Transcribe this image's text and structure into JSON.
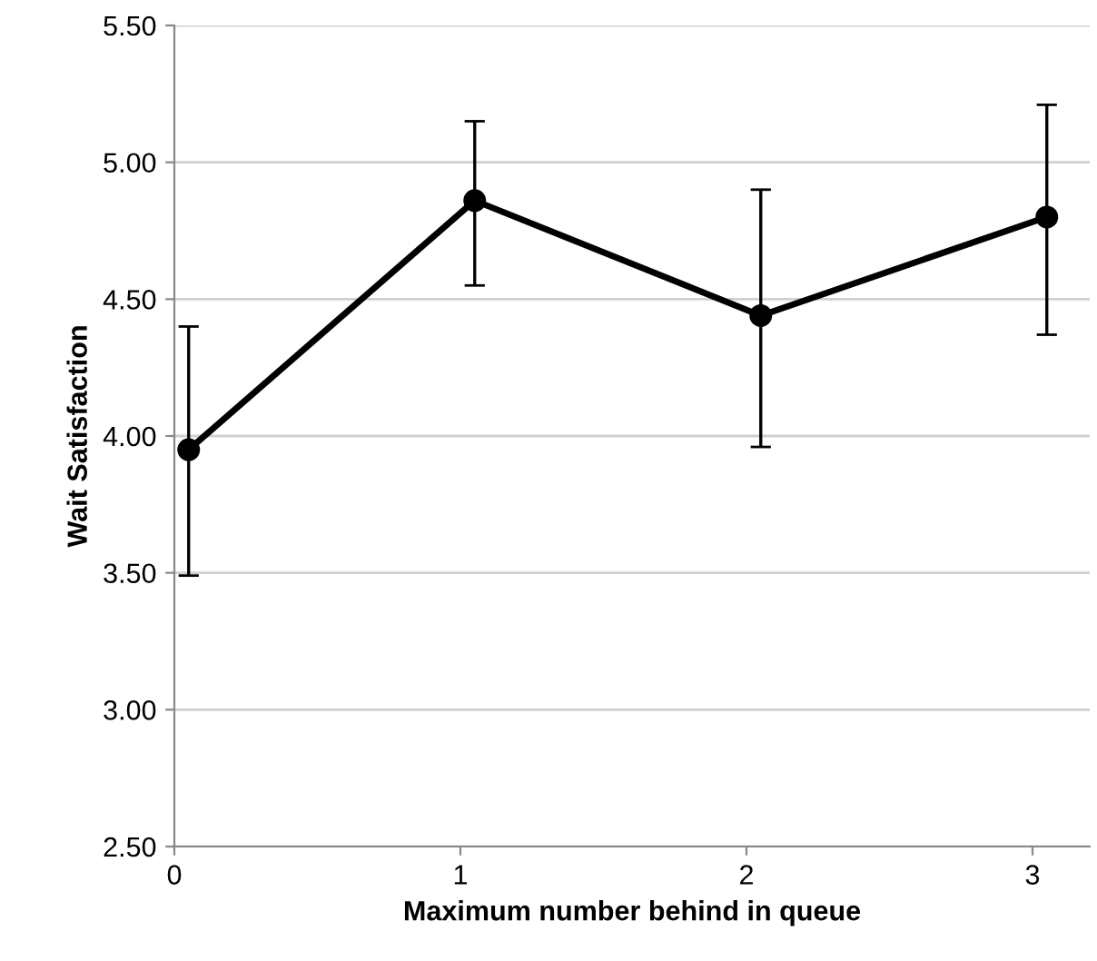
{
  "chart_data": {
    "type": "line",
    "xlabel": "Maximum number behind in queue",
    "ylabel": "Wait Satisfaction",
    "x": [
      0.05,
      1.05,
      2.05,
      3.05
    ],
    "series": [
      {
        "color": "#000000",
        "values": [
          3.95,
          4.86,
          4.44,
          4.8
        ],
        "errors": [
          [
            3.49,
            4.4
          ],
          [
            4.55,
            5.15
          ],
          [
            3.96,
            4.9
          ],
          [
            4.37,
            5.21
          ]
        ]
      }
    ],
    "xlim": [
      0,
      3.2
    ],
    "xticks": [
      0,
      1,
      2,
      3
    ],
    "ylim": [
      2.5,
      5.5
    ],
    "yticks": [
      {
        "value": 2.5,
        "label": "2.50"
      },
      {
        "value": 3.0,
        "label": "3.00"
      },
      {
        "value": 3.5,
        "label": "3.50"
      },
      {
        "value": 4.0,
        "label": "4.00"
      },
      {
        "value": 4.5,
        "label": "4.50"
      },
      {
        "value": 5.0,
        "label": "5.00"
      },
      {
        "value": 5.5,
        "label": "5.50"
      }
    ],
    "grid": "y",
    "marker": "circle",
    "line_style": "solid",
    "legend": false
  }
}
